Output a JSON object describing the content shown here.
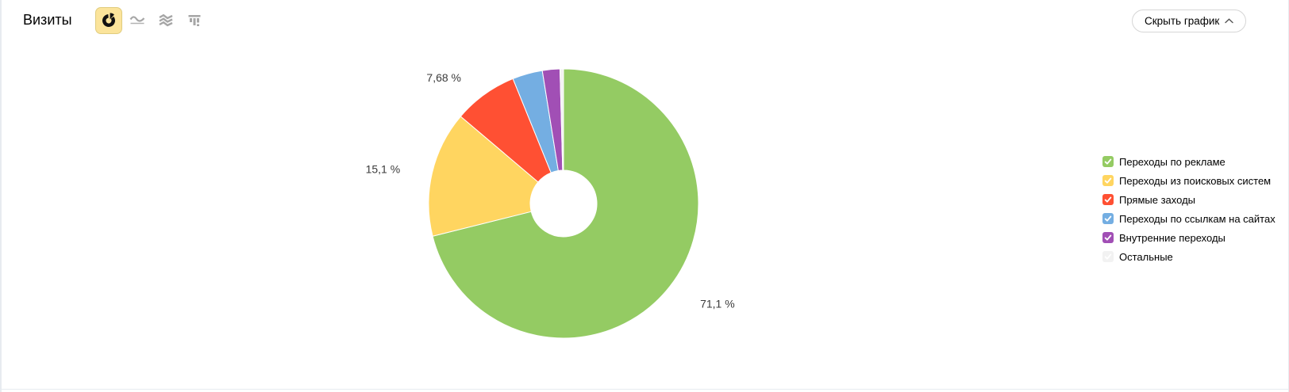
{
  "header": {
    "title": "Визиты",
    "chart_type_buttons": [
      {
        "name": "pie",
        "selected": true
      },
      {
        "name": "line",
        "selected": false
      },
      {
        "name": "stacked-area",
        "selected": false
      },
      {
        "name": "bar",
        "selected": false
      }
    ],
    "hide_chart_label": "Скрыть график"
  },
  "ui_colors": {
    "panel_border": "#e7ebf0",
    "toggle_selected_bg": "#fbe49b",
    "toggle_selected_border": "#e0cc7e",
    "icon_gray": "#a6a6a6",
    "button_border": "#d6d6d6"
  },
  "chart_data": {
    "type": "pie",
    "title": "Визиты",
    "donut": true,
    "start_angle": "top, clockwise",
    "legend_position": "right",
    "slices": [
      {
        "label": "Переходы по рекламе",
        "value": 71.1,
        "display": "71,1 %",
        "color": "#94cb63"
      },
      {
        "label": "Переходы из поисковых систем",
        "value": 15.1,
        "display": "15,1 %",
        "color": "#ffd560"
      },
      {
        "label": "Прямые заходы",
        "value": 7.68,
        "display": "7,68 %",
        "color": "#ff5033"
      },
      {
        "label": "Переходы по ссылкам на сайтах",
        "value": 3.6,
        "display": null,
        "color": "#74aee2"
      },
      {
        "label": "Внутренние переходы",
        "value": 2.1,
        "display": null,
        "color": "#a14fb5"
      },
      {
        "label": "Остальные",
        "value": 0.42,
        "display": null,
        "color": "#f2f2f2"
      }
    ]
  }
}
